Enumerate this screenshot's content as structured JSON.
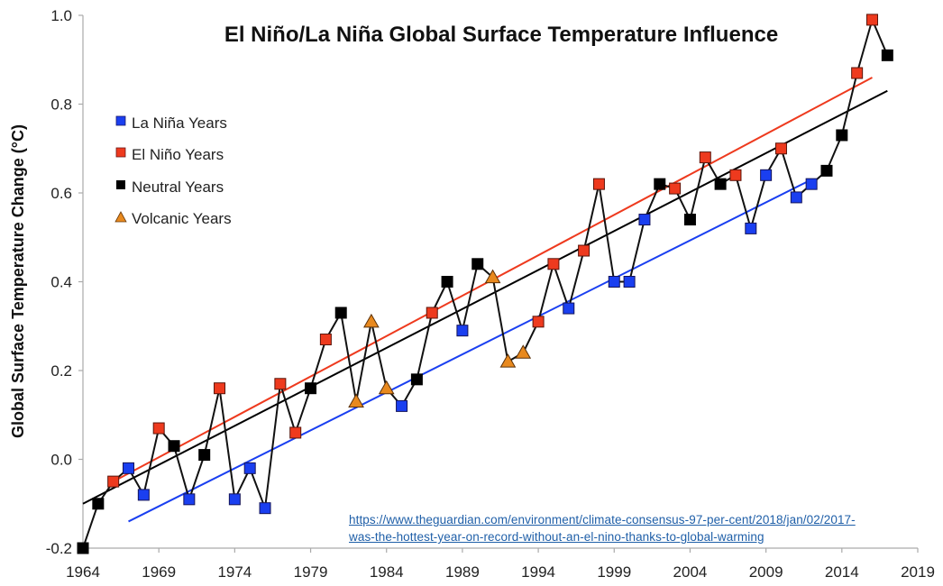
{
  "source": {
    "line1": "https://www.theguardian.com/environment/climate-consensus-97-per-cent/2018/jan/02/2017-",
    "line2": "was-the-hottest-year-on-record-without-an-el-nino-thanks-to-global-warming"
  },
  "colors": {
    "la_nina": "#1a3ff0",
    "el_nino": "#ee3a1e",
    "neutral": "#000000",
    "volcanic": "#e8891e",
    "axis": "#aaaaaa"
  },
  "chart_data": {
    "type": "line",
    "title": "El Niño/La Niña Global Surface Temperature Influence",
    "xlabel": "",
    "ylabel": "Global Surface Temperature Change (°C)",
    "xlim": [
      1964,
      2019
    ],
    "ylim": [
      -0.2,
      1.0
    ],
    "xticks": [
      1964,
      1969,
      1974,
      1979,
      1984,
      1989,
      1994,
      1999,
      2004,
      2009,
      2014,
      2019
    ],
    "yticks": [
      "-0.2",
      "0.0",
      "0.2",
      "0.4",
      "0.6",
      "0.8",
      "1.0"
    ],
    "grid": false,
    "legend": {
      "position": "top-left",
      "entries": [
        {
          "key": "L",
          "label": "La Niña Years",
          "marker": "square"
        },
        {
          "key": "E",
          "label": "El Niño Years",
          "marker": "square"
        },
        {
          "key": "N",
          "label": "Neutral Years",
          "marker": "square"
        },
        {
          "key": "V",
          "label": "Volcanic Years",
          "marker": "triangle"
        }
      ]
    },
    "points": [
      {
        "x": 1964,
        "y": -0.2,
        "type": "N"
      },
      {
        "x": 1965,
        "y": -0.1,
        "type": "N"
      },
      {
        "x": 1966,
        "y": -0.05,
        "type": "E"
      },
      {
        "x": 1967,
        "y": -0.02,
        "type": "L"
      },
      {
        "x": 1968,
        "y": -0.08,
        "type": "L"
      },
      {
        "x": 1969,
        "y": 0.07,
        "type": "E"
      },
      {
        "x": 1970,
        "y": 0.03,
        "type": "N"
      },
      {
        "x": 1971,
        "y": -0.09,
        "type": "L"
      },
      {
        "x": 1972,
        "y": 0.01,
        "type": "N"
      },
      {
        "x": 1973,
        "y": 0.16,
        "type": "E"
      },
      {
        "x": 1974,
        "y": -0.09,
        "type": "L"
      },
      {
        "x": 1975,
        "y": -0.02,
        "type": "L"
      },
      {
        "x": 1976,
        "y": -0.11,
        "type": "L"
      },
      {
        "x": 1977,
        "y": 0.17,
        "type": "E"
      },
      {
        "x": 1978,
        "y": 0.06,
        "type": "E"
      },
      {
        "x": 1979,
        "y": 0.16,
        "type": "N"
      },
      {
        "x": 1980,
        "y": 0.27,
        "type": "E"
      },
      {
        "x": 1981,
        "y": 0.33,
        "type": "N"
      },
      {
        "x": 1982,
        "y": 0.13,
        "type": "V"
      },
      {
        "x": 1983,
        "y": 0.31,
        "type": "V"
      },
      {
        "x": 1984,
        "y": 0.16,
        "type": "V"
      },
      {
        "x": 1985,
        "y": 0.12,
        "type": "L"
      },
      {
        "x": 1986,
        "y": 0.18,
        "type": "N"
      },
      {
        "x": 1987,
        "y": 0.33,
        "type": "E"
      },
      {
        "x": 1988,
        "y": 0.4,
        "type": "N"
      },
      {
        "x": 1989,
        "y": 0.29,
        "type": "L"
      },
      {
        "x": 1990,
        "y": 0.44,
        "type": "N"
      },
      {
        "x": 1991,
        "y": 0.41,
        "type": "V"
      },
      {
        "x": 1992,
        "y": 0.22,
        "type": "V"
      },
      {
        "x": 1993,
        "y": 0.24,
        "type": "V"
      },
      {
        "x": 1994,
        "y": 0.31,
        "type": "E"
      },
      {
        "x": 1995,
        "y": 0.44,
        "type": "E"
      },
      {
        "x": 1996,
        "y": 0.34,
        "type": "L"
      },
      {
        "x": 1997,
        "y": 0.47,
        "type": "E"
      },
      {
        "x": 1998,
        "y": 0.62,
        "type": "E"
      },
      {
        "x": 1999,
        "y": 0.4,
        "type": "L"
      },
      {
        "x": 2000,
        "y": 0.4,
        "type": "L"
      },
      {
        "x": 2001,
        "y": 0.54,
        "type": "L"
      },
      {
        "x": 2002,
        "y": 0.62,
        "type": "N"
      },
      {
        "x": 2003,
        "y": 0.61,
        "type": "E"
      },
      {
        "x": 2004,
        "y": 0.54,
        "type": "N"
      },
      {
        "x": 2005,
        "y": 0.68,
        "type": "E"
      },
      {
        "x": 2006,
        "y": 0.62,
        "type": "N"
      },
      {
        "x": 2007,
        "y": 0.64,
        "type": "E"
      },
      {
        "x": 2008,
        "y": 0.52,
        "type": "L"
      },
      {
        "x": 2009,
        "y": 0.64,
        "type": "L"
      },
      {
        "x": 2010,
        "y": 0.7,
        "type": "E"
      },
      {
        "x": 2011,
        "y": 0.59,
        "type": "L"
      },
      {
        "x": 2012,
        "y": 0.62,
        "type": "L"
      },
      {
        "x": 2013,
        "y": 0.65,
        "type": "N"
      },
      {
        "x": 2014,
        "y": 0.73,
        "type": "N"
      },
      {
        "x": 2015,
        "y": 0.87,
        "type": "E"
      },
      {
        "x": 2016,
        "y": 0.99,
        "type": "E"
      },
      {
        "x": 2017,
        "y": 0.91,
        "type": "N"
      }
    ],
    "trend_lines": [
      {
        "name": "El Niño trend",
        "color_key": "el_nino",
        "x": [
          1966,
          2016
        ],
        "y": [
          -0.05,
          0.86
        ]
      },
      {
        "name": "Neutral trend",
        "color_key": "neutral",
        "x": [
          1964,
          2017
        ],
        "y": [
          -0.1,
          0.83
        ]
      },
      {
        "name": "La Niña trend",
        "color_key": "la_nina",
        "x": [
          1967,
          2012
        ],
        "y": [
          -0.14,
          0.63
        ]
      }
    ]
  }
}
